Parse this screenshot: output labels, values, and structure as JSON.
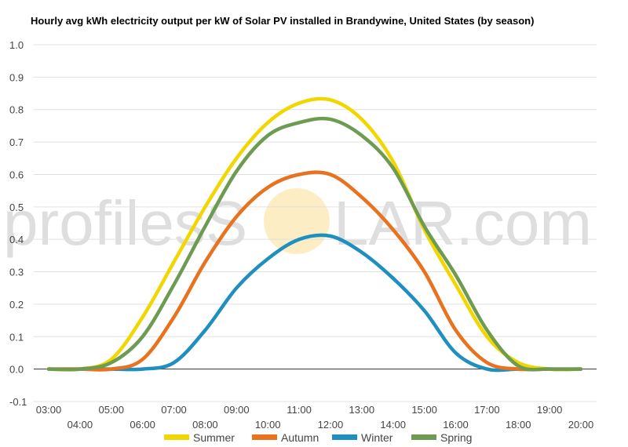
{
  "watermark": {
    "left_text": "profilesS",
    "right_text": "LAR.com",
    "sun_color": "#fbe7b0"
  },
  "chart_data": {
    "type": "line",
    "title": "Hourly avg kWh electricity output per kW of Solar PV installed in Brandywine, United States (by season)",
    "xlabel": "",
    "ylabel": "",
    "x": [
      "03:00",
      "04:00",
      "05:00",
      "06:00",
      "07:00",
      "08:00",
      "09:00",
      "10:00",
      "11:00",
      "12:00",
      "13:00",
      "14:00",
      "15:00",
      "16:00",
      "17:00",
      "18:00",
      "19:00",
      "20:00"
    ],
    "ylim": [
      -0.1,
      1.0
    ],
    "yticks": [
      "1.0",
      "0.9",
      "0.8",
      "0.7",
      "0.6",
      "0.5",
      "0.4",
      "0.3",
      "0.2",
      "0.1",
      "0.0",
      "-0.1"
    ],
    "grid": true,
    "legend_position": "bottom",
    "series": [
      {
        "name": "Summer",
        "color": "#f2d600",
        "values": [
          0.0,
          0.0,
          0.03,
          0.16,
          0.33,
          0.5,
          0.65,
          0.76,
          0.82,
          0.83,
          0.77,
          0.64,
          0.43,
          0.26,
          0.1,
          0.02,
          0.0,
          0.0
        ]
      },
      {
        "name": "Autumn",
        "color": "#e8721e",
        "values": [
          0.0,
          0.0,
          0.0,
          0.03,
          0.16,
          0.33,
          0.47,
          0.56,
          0.6,
          0.6,
          0.53,
          0.43,
          0.3,
          0.12,
          0.02,
          0.0,
          0.0,
          0.0
        ]
      },
      {
        "name": "Winter",
        "color": "#1f8fc0",
        "values": [
          0.0,
          0.0,
          0.0,
          0.0,
          0.02,
          0.12,
          0.25,
          0.34,
          0.4,
          0.41,
          0.36,
          0.28,
          0.18,
          0.05,
          0.0,
          0.0,
          0.0,
          0.0
        ]
      },
      {
        "name": "Spring",
        "color": "#6d9b52",
        "values": [
          0.0,
          0.0,
          0.02,
          0.1,
          0.26,
          0.44,
          0.61,
          0.72,
          0.76,
          0.77,
          0.72,
          0.62,
          0.44,
          0.29,
          0.12,
          0.01,
          0.0,
          0.0
        ]
      }
    ]
  }
}
